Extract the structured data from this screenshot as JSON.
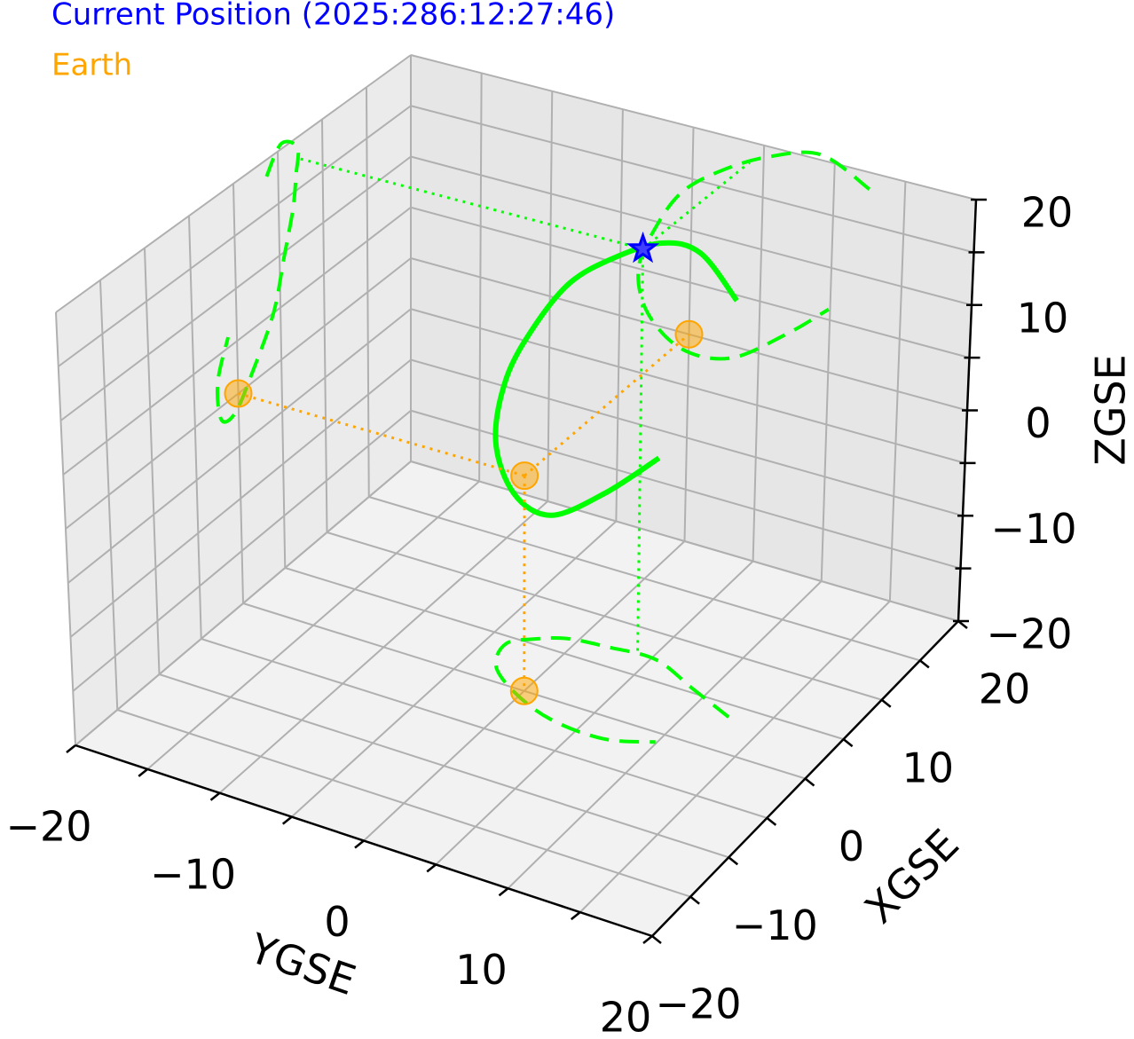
{
  "chart_data": {
    "type": "orbit3d",
    "legend": [
      {
        "label": "Current Position (2025:286:12:27:46)",
        "color": "#0000ff"
      },
      {
        "label": "Earth",
        "color": "#ffa500"
      }
    ],
    "xlabel": "XGSE",
    "ylabel": "YGSE",
    "zlabel": "ZGSE",
    "xlim": [
      -20,
      20
    ],
    "ylim": [
      -20,
      20
    ],
    "zlim": [
      -20,
      20
    ],
    "xticks": [
      {
        "value": -20,
        "label": "−20"
      },
      {
        "value": -10,
        "label": "−10"
      },
      0,
      10,
      20
    ],
    "yticks": [
      {
        "value": -20,
        "label": "−20"
      },
      {
        "value": -10,
        "label": "−10"
      },
      0,
      10,
      20
    ],
    "zticks": [
      {
        "value": -20,
        "label": "−20"
      },
      {
        "value": -10,
        "label": "−10"
      },
      0,
      10,
      20
    ],
    "gridticks": [
      -20,
      -15,
      -10,
      -5,
      0,
      5,
      10,
      15,
      20
    ],
    "grid": true,
    "series": [
      {
        "color": "#00ff00",
        "x": [
          3.7,
          5.4,
          7.2,
          7.0,
          6.6,
          5.5,
          4.2,
          1.7,
          -0.4,
          -2.0,
          -2.3,
          -1.0
        ],
        "y": [
          12.5,
          9.0,
          5.3,
          2.0,
          -0.7,
          -2.5,
          -3.7,
          -3.0,
          -0.5,
          3.0,
          6.9,
          9.9
        ],
        "z": [
          18.4,
          20.5,
          19.0,
          16.5,
          13.5,
          9.5,
          5.0,
          1.0,
          -1.6,
          -1.2,
          2.5,
          6.0
        ]
      },
      {
        "name": "Current Position (2025:286:12:27:46)",
        "color": "#0000ff",
        "marker": "star",
        "x": [
          7.2
        ],
        "y": [
          4.0
        ],
        "z": [
          18.0
        ]
      },
      {
        "name": "Earth",
        "color": "#ffa500",
        "marker": "circle",
        "x": [
          0
        ],
        "y": [
          0
        ],
        "z": [
          0
        ]
      }
    ]
  }
}
